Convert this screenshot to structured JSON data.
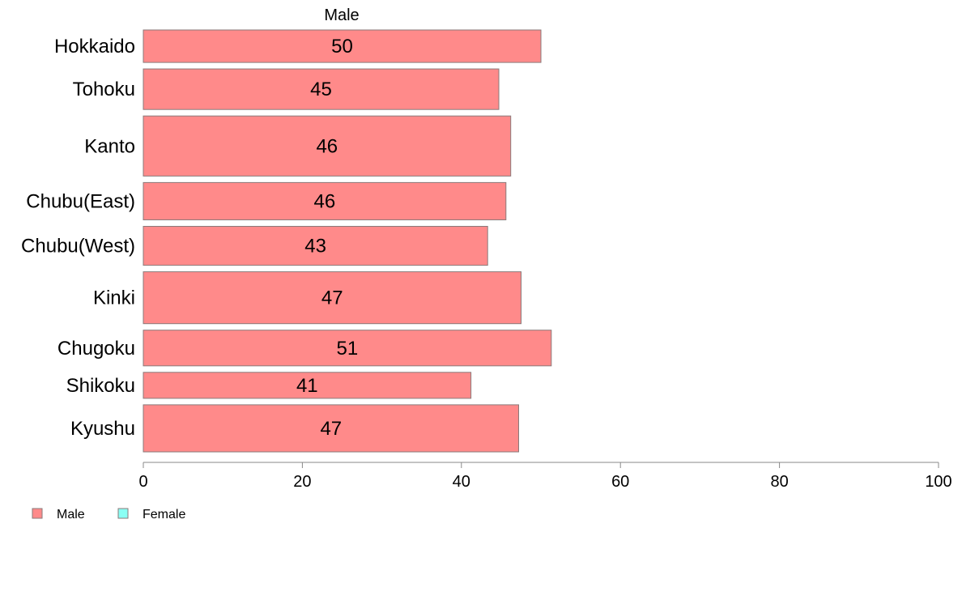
{
  "chart_data": {
    "type": "bar",
    "orientation": "horizontal",
    "panel_title": "Male",
    "categories": [
      "Hokkaido",
      "Tohoku",
      "Kanto",
      "Chubu(East)",
      "Chubu(West)",
      "Kinki",
      "Chugoku",
      "Shikoku",
      "Kyushu"
    ],
    "bar_widths_relative": [
      1.0,
      1.25,
      1.85,
      1.15,
      1.2,
      1.6,
      1.1,
      0.8,
      1.45
    ],
    "series": [
      {
        "name": "Male",
        "values": [
          50,
          44.7,
          46.2,
          45.6,
          43.3,
          47.5,
          51.3,
          41.2,
          47.2
        ],
        "value_labels": [
          "50",
          "45",
          "46",
          "46",
          "43",
          "47",
          "51",
          "41",
          "47"
        ],
        "color": "#ff8a8a"
      }
    ],
    "xlim": [
      0,
      100
    ],
    "xticks": [
      0,
      20,
      40,
      60,
      80,
      100
    ],
    "legend": {
      "placement": "bottom-left",
      "items": [
        {
          "label": "Male",
          "color": "#ff8a8a"
        },
        {
          "label": "Female",
          "color": "#8afff4"
        }
      ]
    },
    "grid": false
  }
}
